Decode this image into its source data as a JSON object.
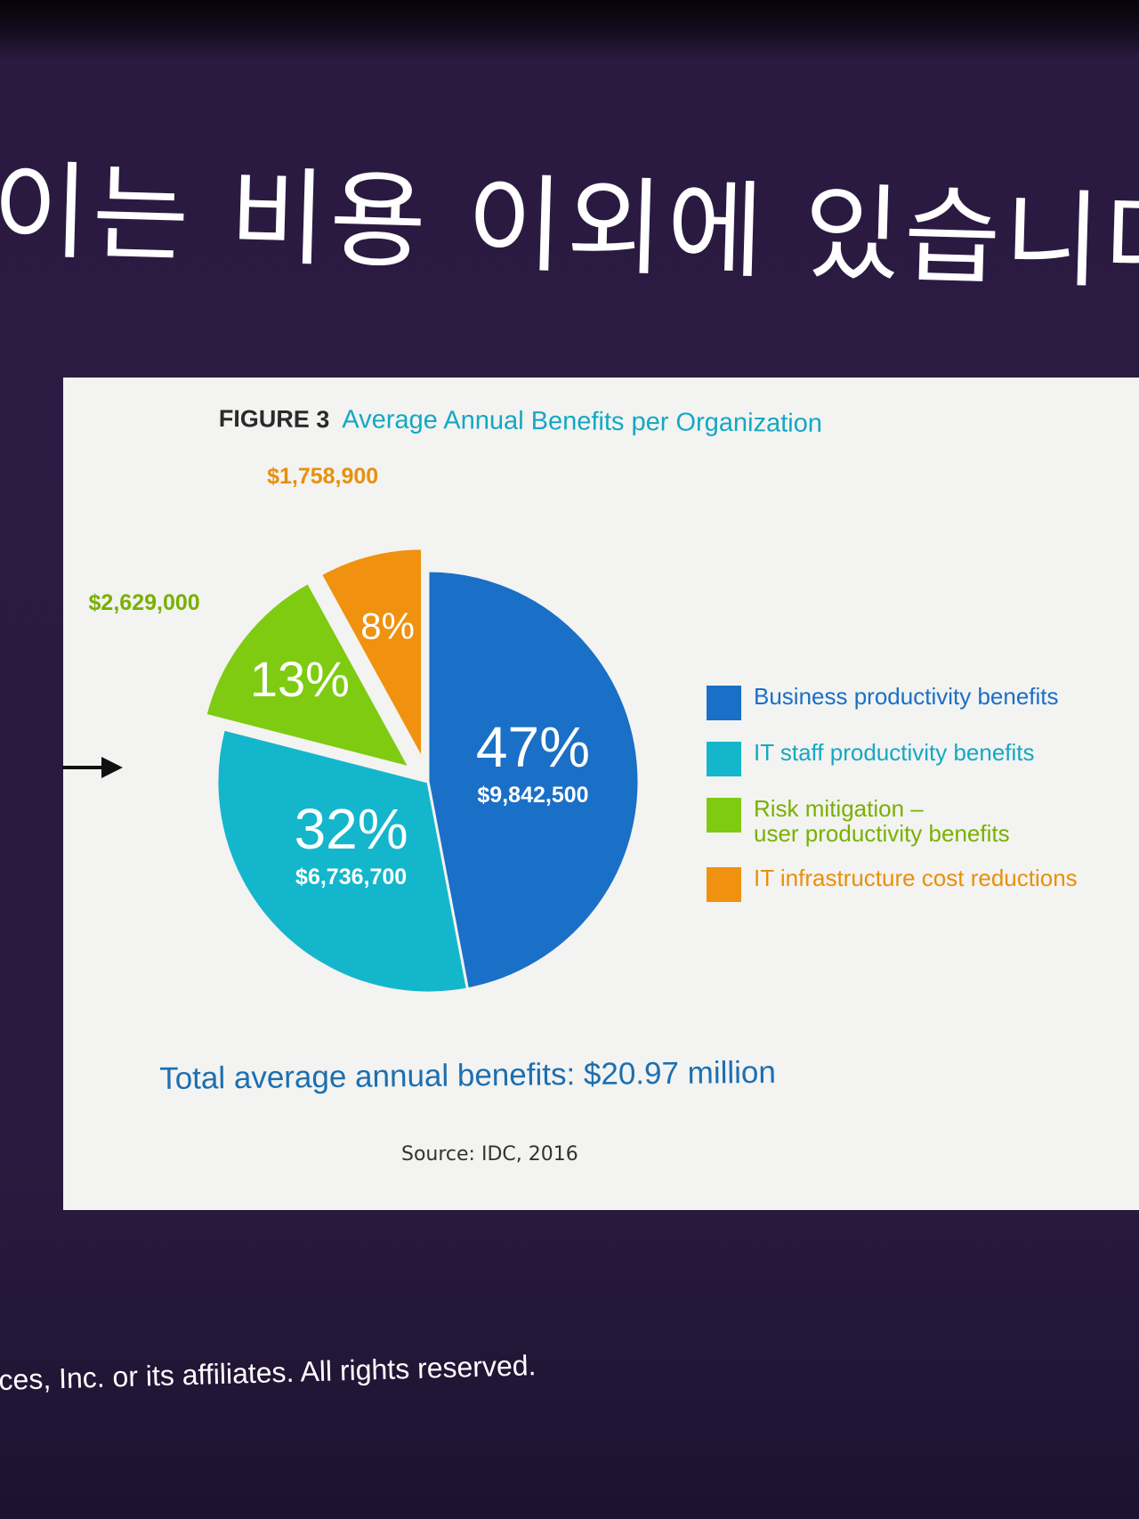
{
  "slide": {
    "title": "이는 비용 이외에 있습니다.",
    "footer": "ces, Inc. or its affiliates. All rights reserved."
  },
  "figure": {
    "label": "FIGURE 3",
    "caption": "Average Annual Benefits per Organization",
    "total": "Total average annual benefits: $20.97 million",
    "source": "Source: IDC, 2016"
  },
  "chart_data": {
    "type": "pie",
    "title": "Average Annual Benefits per Organization",
    "slices": [
      {
        "label": "Business productivity benefits",
        "legend": "Business productivity benefits",
        "percent": 47,
        "percent_label": "47%",
        "value": 9842500,
        "value_label": "$9,842,500",
        "color": "#1a6fc6",
        "value_color": "#ffffff",
        "exploded": false
      },
      {
        "label": "IT staff productivity benefits",
        "legend": "IT staff productivity benefits",
        "percent": 32,
        "percent_label": "32%",
        "value": 6736700,
        "value_label": "$6,736,700",
        "color": "#14b6cc",
        "value_color": "#ffffff",
        "exploded": false
      },
      {
        "label": "Risk mitigation – user productivity benefits",
        "legend": "Risk mitigation –\nuser productivity benefits",
        "percent": 13,
        "percent_label": "13%",
        "value": 2629000,
        "value_label": "$2,629,000",
        "color": "#7ecb12",
        "value_color": "#7ab000",
        "exploded": true
      },
      {
        "label": "IT infrastructure cost reductions",
        "legend": "IT infrastructure cost reductions",
        "percent": 8,
        "percent_label": "8%",
        "value": 1758900,
        "value_label": "$1,758,900",
        "color": "#f0920f",
        "value_color": "#e8900a",
        "exploded": true
      }
    ],
    "legend_position": "right",
    "legend_text_colors": [
      "#1a6fc6",
      "#14a8c4",
      "#7ab000",
      "#e8900a"
    ]
  }
}
